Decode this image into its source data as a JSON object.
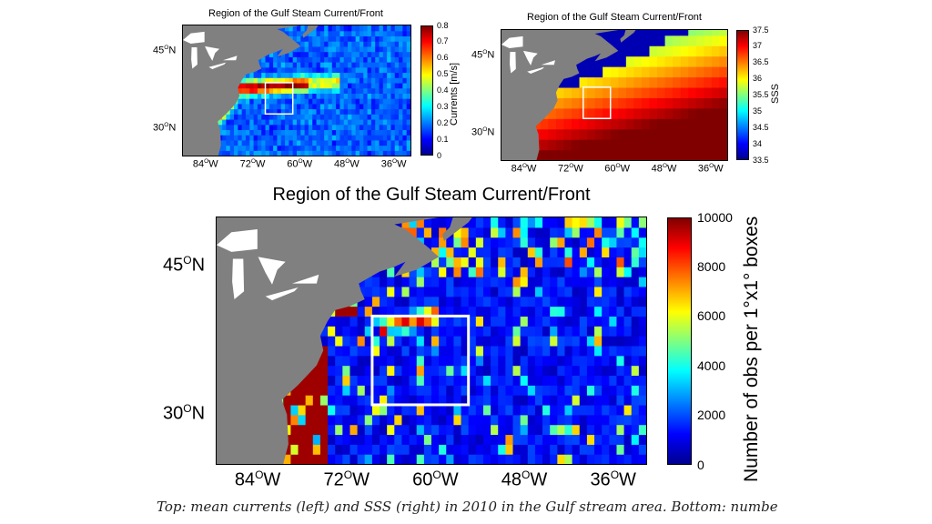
{
  "colors": {
    "land": "#808080",
    "ocean_low": "#0000b4",
    "high": "#800000",
    "box": "#ffffff",
    "lakes": "#ffffff"
  },
  "chart_data": [
    {
      "id": "currents",
      "type": "heatmap",
      "title": "Region of the Gulf Steam Current/Front",
      "x_ticks": [
        "84",
        "72",
        "60",
        "48",
        "36"
      ],
      "y_ticks": [
        "45",
        "30"
      ],
      "xlim": [
        -90,
        -32
      ],
      "ylim": [
        25,
        50
      ],
      "colorbar": {
        "label": "Currents [m/s]",
        "ticks": [
          "0.8",
          "0.7",
          "0.6",
          "0.5",
          "0.4",
          "0.3",
          "0.2",
          "0.1",
          "0"
        ],
        "range": [
          0,
          0.8
        ],
        "colormap": "jet"
      },
      "highlight_box": {
        "lon": [
          -69,
          -62
        ],
        "lat": [
          33,
          39
        ]
      }
    },
    {
      "id": "sss",
      "type": "heatmap",
      "title": "Region of the Gulf Steam Current/Front",
      "x_ticks": [
        "84",
        "72",
        "60",
        "48",
        "36"
      ],
      "y_ticks": [
        "45",
        "30"
      ],
      "xlim": [
        -90,
        -32
      ],
      "ylim": [
        25,
        50
      ],
      "colorbar": {
        "label": "SSS",
        "ticks": [
          "37.5",
          "37",
          "36.5",
          "36",
          "35.5",
          "35",
          "34.5",
          "34",
          "33.5"
        ],
        "range": [
          33.5,
          37.5
        ],
        "colormap": "jet"
      },
      "highlight_box": {
        "lon": [
          -69,
          -62
        ],
        "lat": [
          33,
          39
        ]
      }
    },
    {
      "id": "obs",
      "type": "heatmap",
      "title": "Region of the Gulf Steam Current/Front",
      "x_ticks": [
        "84",
        "72",
        "60",
        "48",
        "36"
      ],
      "y_ticks": [
        "45",
        "30"
      ],
      "xlim": [
        -90,
        -32
      ],
      "ylim": [
        25,
        50
      ],
      "colorbar": {
        "label": "Number of obs per 1°x1° boxes",
        "ticks": [
          "10000",
          "8000",
          "6000",
          "4000",
          "2000",
          "0"
        ],
        "range": [
          0,
          10000
        ],
        "colormap": "jet"
      },
      "highlight_box": {
        "lon": [
          -69,
          -56
        ],
        "lat": [
          31,
          40
        ]
      }
    }
  ],
  "axis_symbols": {
    "degree": "O",
    "west": "W",
    "north": "N"
  },
  "caption": "Top: mean currents (left) and SSS (right) in 2010 in the Gulf stream area. Bottom: numbe"
}
